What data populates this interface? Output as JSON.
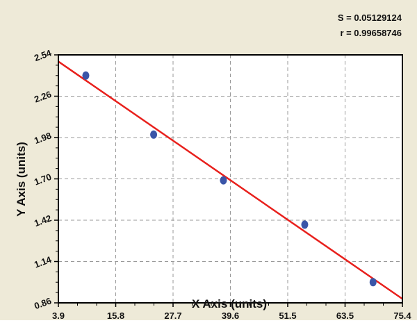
{
  "chart_data": {
    "type": "scatter",
    "title": "",
    "xlabel": "X Axis (units)",
    "ylabel": "Y Axis (units)",
    "xlim": [
      3.9,
      75.4
    ],
    "ylim": [
      0.86,
      2.54
    ],
    "xticks": [
      "3.9",
      "15.8",
      "27.7",
      "39.6",
      "51.5",
      "63.5",
      "75.4"
    ],
    "yticks": [
      "0.86",
      "1.14",
      "1.42",
      "1.70",
      "1.98",
      "2.26",
      "2.54"
    ],
    "grid": true,
    "points": {
      "x": [
        9.6,
        23.7,
        38.2,
        55.1,
        69.3
      ],
      "y": [
        2.4,
        2.0,
        1.69,
        1.39,
        1.0
      ]
    },
    "fit_line": {
      "x": [
        3.9,
        75.4
      ],
      "y": [
        2.495,
        0.887
      ]
    },
    "annotations": {
      "s": "S = 0.05129124",
      "r": "r = 0.99658746"
    },
    "colors": {
      "points": "#3a55a8",
      "fit_line": "#e8201c",
      "background": "#eeead8",
      "plot": "#ffffff"
    }
  }
}
